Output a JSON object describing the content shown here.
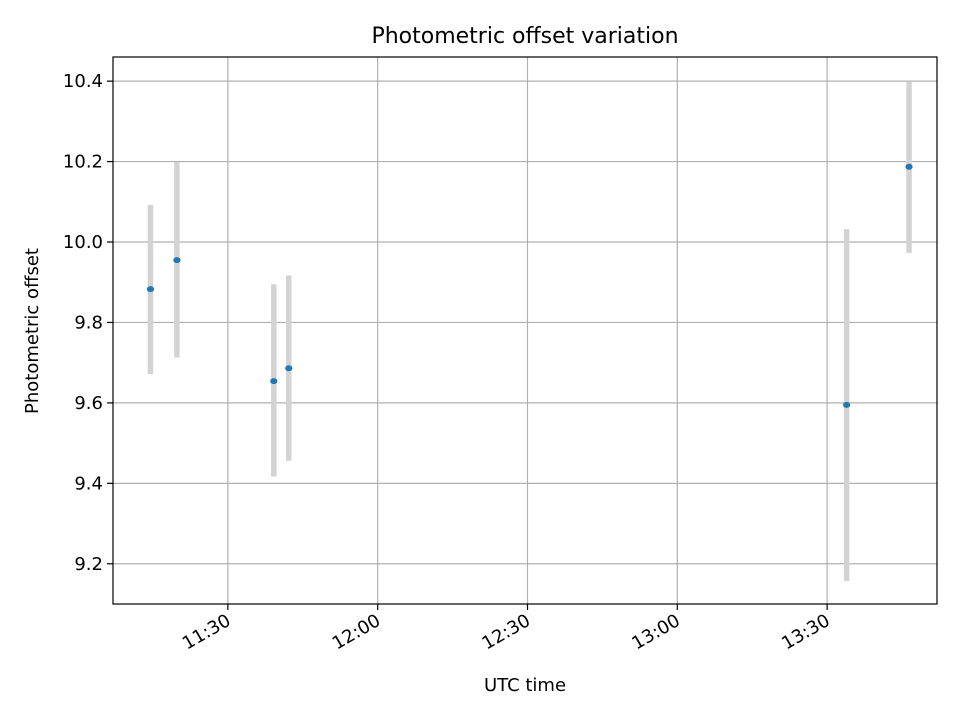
{
  "chart_data": {
    "type": "scatter",
    "title": "Photometric offset variation",
    "xlabel": "UTC time",
    "ylabel": "Photometric offset",
    "x_axis_type": "time",
    "xlim": [
      "11:07",
      "13:52"
    ],
    "ylim": [
      9.1,
      10.46
    ],
    "x_ticks": [
      "11:30",
      "12:00",
      "12:30",
      "13:00",
      "13:30"
    ],
    "y_ticks": [
      9.2,
      9.4,
      9.6,
      9.8,
      10.0,
      10.2,
      10.4
    ],
    "grid": true,
    "legend": "none",
    "marker_color": "#1f77b4",
    "errorbar_color": "#d3d3d3",
    "series": [
      {
        "points": [
          {
            "x": "11:14.5",
            "y": 9.883,
            "ylow": 9.672,
            "yhigh": 10.092
          },
          {
            "x": "11:19.8",
            "y": 9.955,
            "ylow": 9.713,
            "yhigh": 10.199
          },
          {
            "x": "11:39.2",
            "y": 9.654,
            "ylow": 9.417,
            "yhigh": 9.895
          },
          {
            "x": "11:42.2",
            "y": 9.686,
            "ylow": 9.456,
            "yhigh": 9.917
          },
          {
            "x": "13:33.9",
            "y": 9.595,
            "ylow": 9.157,
            "yhigh": 10.032
          },
          {
            "x": "13:46.4",
            "y": 10.187,
            "ylow": 9.973,
            "yhigh": 10.398
          }
        ]
      }
    ]
  }
}
